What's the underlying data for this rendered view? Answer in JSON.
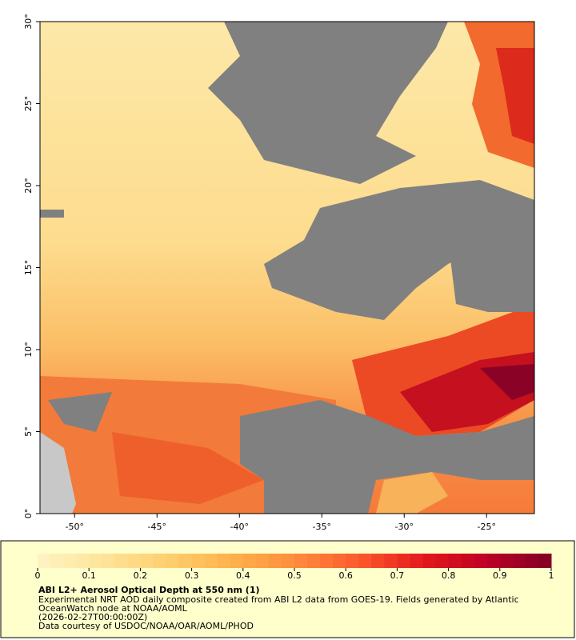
{
  "map": {
    "xlim": [
      -52.1,
      -22.1
    ],
    "ylim": [
      0,
      30
    ],
    "xticks": [
      {
        "value": -50,
        "label": "-50°"
      },
      {
        "value": -45,
        "label": "-45°"
      },
      {
        "value": -40,
        "label": "-40°"
      },
      {
        "value": -35,
        "label": "-35°"
      },
      {
        "value": -30,
        "label": "-30°"
      },
      {
        "value": -25,
        "label": "-25°"
      }
    ],
    "yticks": [
      {
        "value": 0,
        "label": "0°"
      },
      {
        "value": 5,
        "label": "5°"
      },
      {
        "value": 10,
        "label": "10°"
      },
      {
        "value": 15,
        "label": "15°"
      },
      {
        "value": 20,
        "label": "20°"
      },
      {
        "value": 25,
        "label": "25°"
      },
      {
        "value": 30,
        "label": "30°"
      }
    ]
  },
  "colorbar": {
    "lim": [
      0,
      1
    ],
    "ticks": [
      0,
      0.1,
      0.2,
      0.3,
      0.4,
      0.5,
      0.6,
      0.7,
      0.8,
      0.9,
      1
    ],
    "colormap": [
      "#fff4c4",
      "#fee49a",
      "#fed070",
      "#feb24c",
      "#fd8d3c",
      "#fc5a2d",
      "#e31a1c",
      "#bd0026",
      "#800026"
    ]
  },
  "legend": {
    "title": "ABI L2+ Aerosol Optical Depth at 550 nm (1)",
    "description": [
      "Experimental NRT AOD daily composite created from ABI L2 data from GOES-19. Fields generated by Atlantic",
      "OceanWatch node at NOAA/AOML"
    ],
    "date": "(2026-02-27T00:00:00Z)",
    "credit": "Data courtesy of USDOC/NOAA/OAR/AOML/PHOD"
  }
}
